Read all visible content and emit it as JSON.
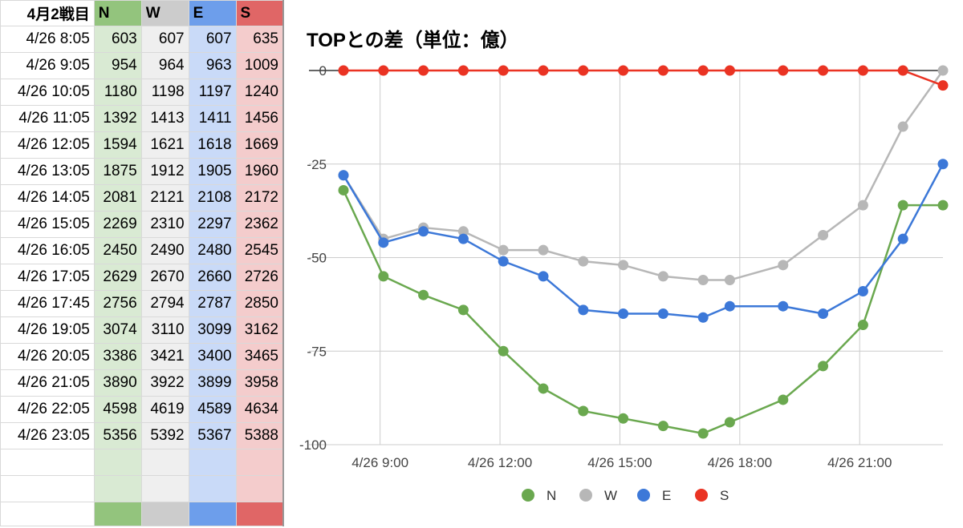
{
  "sheet": {
    "header": {
      "label": "4月2戦目",
      "cols": [
        "N",
        "W",
        "E",
        "S"
      ]
    },
    "rows": [
      {
        "time": "4/26 8:05",
        "N": "603",
        "W": "607",
        "E": "607",
        "S": "635"
      },
      {
        "time": "4/26 9:05",
        "N": "954",
        "W": "964",
        "E": "963",
        "S": "1009"
      },
      {
        "time": "4/26 10:05",
        "N": "1180",
        "W": "1198",
        "E": "1197",
        "S": "1240"
      },
      {
        "time": "4/26 11:05",
        "N": "1392",
        "W": "1413",
        "E": "1411",
        "S": "1456"
      },
      {
        "time": "4/26 12:05",
        "N": "1594",
        "W": "1621",
        "E": "1618",
        "S": "1669"
      },
      {
        "time": "4/26 13:05",
        "N": "1875",
        "W": "1912",
        "E": "1905",
        "S": "1960"
      },
      {
        "time": "4/26 14:05",
        "N": "2081",
        "W": "2121",
        "E": "2108",
        "S": "2172"
      },
      {
        "time": "4/26 15:05",
        "N": "2269",
        "W": "2310",
        "E": "2297",
        "S": "2362"
      },
      {
        "time": "4/26 16:05",
        "N": "2450",
        "W": "2490",
        "E": "2480",
        "S": "2545"
      },
      {
        "time": "4/26 17:05",
        "N": "2629",
        "W": "2670",
        "E": "2660",
        "S": "2726"
      },
      {
        "time": "4/26 17:45",
        "N": "2756",
        "W": "2794",
        "E": "2787",
        "S": "2850"
      },
      {
        "time": "4/26 19:05",
        "N": "3074",
        "W": "3110",
        "E": "3099",
        "S": "3162"
      },
      {
        "time": "4/26 20:05",
        "N": "3386",
        "W": "3421",
        "E": "3400",
        "S": "3465"
      },
      {
        "time": "4/26 21:05",
        "N": "3890",
        "W": "3922",
        "E": "3899",
        "S": "3958"
      },
      {
        "time": "4/26 22:05",
        "N": "4598",
        "W": "4619",
        "E": "4589",
        "S": "4634"
      },
      {
        "time": "4/26 23:05",
        "N": "5356",
        "W": "5392",
        "E": "5367",
        "S": "5388"
      }
    ],
    "colors": {
      "N": {
        "header": "#93c47d",
        "cell": "#d9ead3"
      },
      "W": {
        "header": "#cccccc",
        "cell": "#efefef"
      },
      "E": {
        "header": "#6d9eeb",
        "cell": "#c9daf8"
      },
      "S": {
        "header": "#e06666",
        "cell": "#f4cccc"
      }
    }
  },
  "chart_data": {
    "type": "line",
    "title": "TOPとの差（単位：億）",
    "xlabel": "",
    "ylabel": "",
    "x": [
      "4/26 8:05",
      "4/26 9:05",
      "4/26 10:05",
      "4/26 11:05",
      "4/26 12:05",
      "4/26 13:05",
      "4/26 14:05",
      "4/26 15:05",
      "4/26 16:05",
      "4/26 17:05",
      "4/26 17:45",
      "4/26 19:05",
      "4/26 20:05",
      "4/26 21:05",
      "4/26 22:05",
      "4/26 23:05"
    ],
    "x_hours": [
      8.0833,
      9.0833,
      10.0833,
      11.0833,
      12.0833,
      13.0833,
      14.0833,
      15.0833,
      16.0833,
      17.0833,
      17.75,
      19.0833,
      20.0833,
      21.0833,
      22.0833,
      23.0833
    ],
    "x_ticks": [
      {
        "value": 9,
        "label": "4/26 9:00"
      },
      {
        "value": 12,
        "label": "4/26 12:00"
      },
      {
        "value": 15,
        "label": "4/26 15:00"
      },
      {
        "value": 18,
        "label": "4/26 18:00"
      },
      {
        "value": 21,
        "label": "4/26 21:00"
      }
    ],
    "xlim": [
      8.0833,
      23.0833
    ],
    "ylim": [
      -100,
      0
    ],
    "y_ticks": [
      0,
      -25,
      -50,
      -75,
      -100
    ],
    "grid": true,
    "legend": "bottom",
    "series": [
      {
        "name": "N",
        "color": "#6aa84f",
        "values": [
          -32,
          -55,
          -60,
          -64,
          -75,
          -85,
          -91,
          -93,
          -95,
          -97,
          -94,
          -88,
          -79,
          -68,
          -36,
          -36
        ]
      },
      {
        "name": "W",
        "color": "#b7b7b7",
        "values": [
          -28,
          -45,
          -42,
          -43,
          -48,
          -48,
          -51,
          -52,
          -55,
          -56,
          -56,
          -52,
          -44,
          -36,
          -15,
          0
        ]
      },
      {
        "name": "E",
        "color": "#3c78d8",
        "values": [
          -28,
          -46,
          -43,
          -45,
          -51,
          -55,
          -64,
          -65,
          -65,
          -66,
          -63,
          -63,
          -65,
          -59,
          -45,
          -25
        ]
      },
      {
        "name": "S",
        "color": "#ea3323",
        "values": [
          0,
          0,
          0,
          0,
          0,
          0,
          0,
          0,
          0,
          0,
          0,
          0,
          0,
          0,
          0,
          -4
        ]
      }
    ]
  }
}
